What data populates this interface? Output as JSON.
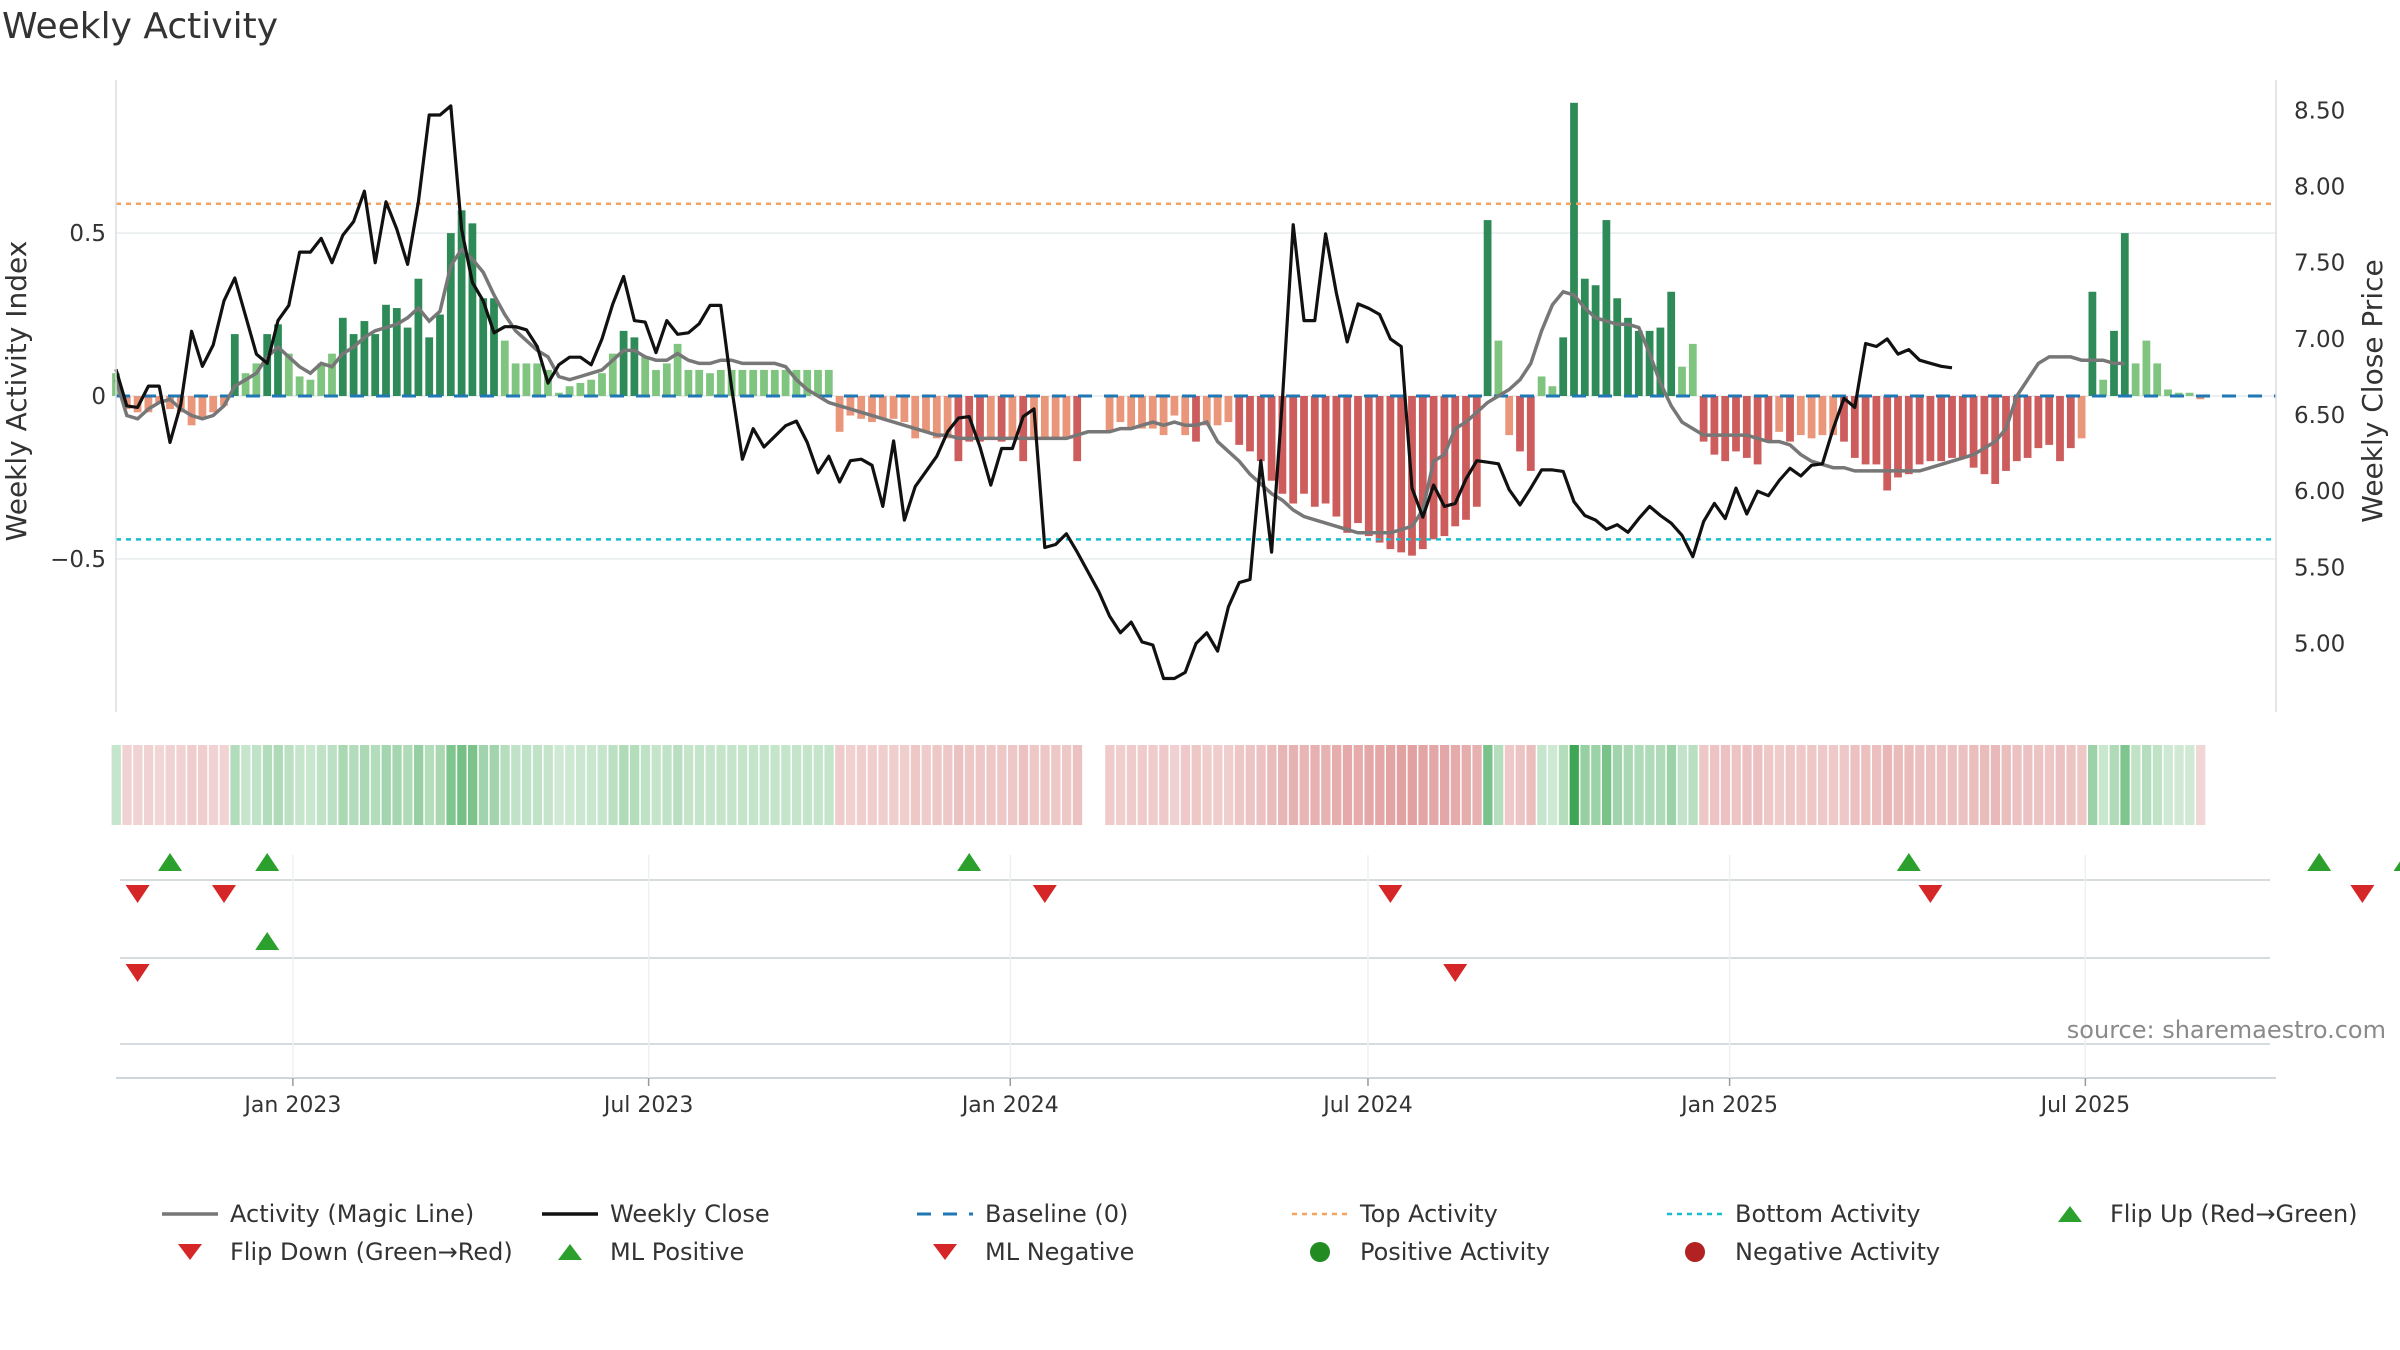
{
  "title": "Weekly Activity",
  "source": "source: sharemaestro.com",
  "colors": {
    "strong_pos": "#2e8b57",
    "light_pos": "#7fc47f",
    "strong_neg": "#cd5c5c",
    "light_neg": "#e9967a",
    "magic": "#777777",
    "close": "#111111",
    "baseline": "#1f77b4",
    "top": "#f4a460",
    "bottom": "#17becf",
    "flip_up": "#2ca02c",
    "flip_down": "#d62728",
    "pos_dot": "#228b22",
    "neg_dot": "#b22222"
  },
  "legend": [
    {
      "label": "Activity (Magic Line)",
      "sym": "line",
      "color": "#777777"
    },
    {
      "label": "Weekly Close",
      "sym": "line",
      "color": "#111111"
    },
    {
      "label": "Baseline (0)",
      "sym": "dash",
      "color": "#1f77b4"
    },
    {
      "label": "Top Activity",
      "sym": "dot",
      "color": "#f4a460"
    },
    {
      "label": "Bottom Activity",
      "sym": "dot",
      "color": "#17becf"
    },
    {
      "label": "Flip Up (Red→Green)",
      "sym": "up",
      "color": "#2ca02c"
    },
    {
      "label": "Flip Down (Green→Red)",
      "sym": "down",
      "color": "#d62728"
    },
    {
      "label": "ML Positive",
      "sym": "up",
      "color": "#2ca02c"
    },
    {
      "label": "ML Negative",
      "sym": "down",
      "color": "#d62728"
    },
    {
      "label": "Positive Activity",
      "sym": "circle",
      "color": "#228b22"
    },
    {
      "label": "Negative Activity",
      "sym": "circle",
      "color": "#b22222"
    }
  ],
  "chart_data": {
    "type": "bar",
    "title": "Weekly Activity",
    "ylabel": "Weekly Activity Index",
    "y2label": "Weekly Close Price",
    "ylim": [
      -0.97,
      0.97
    ],
    "y2lim": [
      4.55,
      8.7
    ],
    "yticks": [
      -0.5,
      0,
      0.5
    ],
    "ytick_labels": [
      "−0.5",
      "0",
      "0.5"
    ],
    "y2ticks": [
      5.0,
      5.5,
      6.0,
      6.5,
      7.0,
      7.5,
      8.0,
      8.5
    ],
    "y2tick_labels": [
      "5.00",
      "5.50",
      "6.00",
      "6.50",
      "7.00",
      "7.50",
      "8.00",
      "8.50"
    ],
    "top_activity": 0.59,
    "bottom_activity": -0.44,
    "x_start": "2022-10-03",
    "x_end": "2025-10-06",
    "x_ticks": [
      "2023-01-01",
      "2023-07-01",
      "2024-01-01",
      "2024-07-01",
      "2025-01-01",
      "2025-07-01"
    ],
    "x_tick_labels": [
      "Jan 2023",
      "Jul 2023",
      "Jan 2024",
      "Jul 2024",
      "Jan 2025",
      "Jul 2025"
    ],
    "activity_segments": [
      [
        0,
        [
          0.07,
          -0.04,
          -0.05,
          -0.05,
          -0.02,
          -0.04,
          -0.05,
          -0.09,
          -0.07,
          -0.05,
          -0.03,
          0.19,
          0.07,
          0.1,
          0.19,
          0.22,
          0.13,
          0.06,
          0.05,
          0.1,
          0.13,
          0.24,
          0.19,
          0.23,
          0.19,
          0.28,
          0.27,
          0.21,
          0.36,
          0.18,
          0.25,
          0.5,
          0.57,
          0.53,
          0.3,
          0.3,
          0.17,
          0.1,
          0.1,
          0.1,
          0.08,
          0.01,
          0.03,
          0.04,
          0.05,
          0.07,
          0.13,
          0.2,
          0.18,
          0.12,
          0.08,
          0.1,
          0.16,
          0.08,
          0.08,
          0.07,
          0.08,
          0.08,
          0.08,
          0.08,
          0.08,
          0.08,
          0.08,
          0.08,
          0.08,
          0.08,
          0.08,
          -0.11,
          -0.06,
          -0.07,
          -0.08,
          -0.07,
          -0.07,
          -0.08,
          -0.13,
          -0.11,
          -0.13,
          -0.13,
          -0.2,
          -0.14,
          -0.14,
          -0.13,
          -0.14,
          -0.13,
          -0.2,
          -0.13,
          -0.13,
          -0.13,
          -0.13,
          -0.2
        ]
      ],
      [
        92,
        [
          -0.11,
          -0.08,
          -0.1,
          -0.1,
          -0.1,
          -0.12,
          -0.06,
          -0.12,
          -0.14,
          -0.09,
          -0.09,
          -0.08,
          -0.15,
          -0.17,
          -0.2,
          -0.26,
          -0.3,
          -0.33,
          -0.3,
          -0.34,
          -0.33,
          -0.37,
          -0.42,
          -0.39,
          -0.43,
          -0.45,
          -0.47,
          -0.48,
          -0.49,
          -0.47,
          -0.44,
          -0.43,
          -0.4,
          -0.38,
          -0.34,
          0.54,
          0.17,
          -0.12,
          -0.17,
          -0.23,
          0.06,
          0.03,
          0.18,
          0.9,
          0.36,
          0.34,
          0.54,
          0.3,
          0.24,
          0.2,
          0.2,
          0.21,
          0.32,
          0.09,
          0.16,
          -0.14,
          -0.18,
          -0.2,
          -0.17,
          -0.19,
          -0.21,
          -0.14,
          -0.11,
          -0.14,
          -0.12,
          -0.13,
          -0.12,
          -0.12,
          -0.14,
          -0.19,
          -0.21,
          -0.21,
          -0.29,
          -0.25,
          -0.24,
          -0.21,
          -0.2,
          -0.2,
          -0.19,
          -0.19,
          -0.22,
          -0.24,
          -0.27,
          -0.23,
          -0.2,
          -0.19,
          -0.16,
          -0.15,
          -0.2,
          -0.16,
          -0.13,
          0.32,
          0.05,
          0.2,
          0.5,
          0.1,
          0.17,
          0.1,
          0.02,
          0.01,
          0.01,
          -0.01
        ]
      ]
    ],
    "magic_line": [
      0.05,
      -0.06,
      -0.07,
      -0.04,
      -0.02,
      -0.01,
      -0.04,
      -0.06,
      -0.07,
      -0.06,
      -0.03,
      0.03,
      0.05,
      0.07,
      0.12,
      0.15,
      0.12,
      0.09,
      0.07,
      0.1,
      0.09,
      0.13,
      0.15,
      0.18,
      0.2,
      0.21,
      0.22,
      0.24,
      0.27,
      0.23,
      0.26,
      0.4,
      0.45,
      0.42,
      0.38,
      0.31,
      0.25,
      0.2,
      0.17,
      0.14,
      0.12,
      0.06,
      0.05,
      0.06,
      0.07,
      0.08,
      0.11,
      0.14,
      0.14,
      0.12,
      0.11,
      0.11,
      0.13,
      0.11,
      0.1,
      0.1,
      0.11,
      0.11,
      0.1,
      0.1,
      0.1,
      0.1,
      0.09,
      0.05,
      0.02,
      0.0,
      -0.02,
      -0.03,
      -0.04,
      -0.05,
      -0.06,
      -0.07,
      -0.08,
      -0.09,
      -0.1,
      -0.11,
      -0.12,
      -0.12,
      -0.13,
      -0.13,
      -0.13,
      -0.13,
      -0.13,
      -0.13,
      -0.13,
      -0.13,
      -0.13,
      -0.13,
      -0.13,
      -0.12,
      -0.11,
      -0.11,
      -0.11,
      -0.1,
      -0.1,
      -0.09,
      -0.08,
      -0.09,
      -0.08,
      -0.09,
      -0.09,
      -0.08,
      -0.14,
      -0.17,
      -0.2,
      -0.24,
      -0.27,
      -0.3,
      -0.32,
      -0.35,
      -0.37,
      -0.38,
      -0.39,
      -0.4,
      -0.41,
      -0.42,
      -0.42,
      -0.42,
      -0.42,
      -0.41,
      -0.4,
      -0.35,
      -0.2,
      -0.18,
      -0.1,
      -0.08,
      -0.05,
      -0.02,
      0.0,
      0.02,
      0.05,
      0.1,
      0.2,
      0.28,
      0.32,
      0.31,
      0.27,
      0.24,
      0.23,
      0.22,
      0.22,
      0.21,
      0.13,
      0.04,
      -0.03,
      -0.08,
      -0.1,
      -0.12,
      -0.12,
      -0.12,
      -0.12,
      -0.12,
      -0.13,
      -0.14,
      -0.14,
      -0.15,
      -0.18,
      -0.2,
      -0.21,
      -0.22,
      -0.22,
      -0.23,
      -0.23,
      -0.23,
      -0.23,
      -0.23,
      -0.23,
      -0.23,
      -0.22,
      -0.21,
      -0.2,
      -0.19,
      -0.18,
      -0.16,
      -0.14,
      -0.1,
      0.0,
      0.05,
      0.1,
      0.12,
      0.12,
      0.12,
      0.11,
      0.11,
      0.11,
      0.1,
      0.1
    ],
    "weekly_close": [
      6.8,
      6.56,
      6.55,
      6.69,
      6.69,
      6.32,
      6.57,
      7.05,
      6.82,
      6.96,
      7.25,
      7.4,
      7.15,
      6.9,
      6.84,
      7.12,
      7.22,
      7.57,
      7.57,
      7.66,
      7.5,
      7.68,
      7.77,
      7.97,
      7.5,
      7.9,
      7.72,
      7.49,
      7.9,
      8.47,
      8.47,
      8.53,
      7.72,
      7.37,
      7.25,
      7.04,
      7.08,
      7.08,
      7.06,
      6.95,
      6.71,
      6.83,
      6.88,
      6.88,
      6.83,
      7.0,
      7.23,
      7.41,
      7.12,
      7.11,
      6.91,
      7.12,
      7.03,
      7.04,
      7.1,
      7.22,
      7.22,
      6.68,
      6.21,
      6.41,
      6.29,
      6.36,
      6.43,
      6.46,
      6.32,
      6.12,
      6.23,
      6.06,
      6.2,
      6.21,
      6.17,
      5.9,
      6.33,
      5.81,
      6.03,
      6.13,
      6.23,
      6.39,
      6.48,
      6.49,
      6.29,
      6.04,
      6.28,
      6.28,
      6.49,
      6.54,
      5.63,
      5.65,
      5.72,
      5.6,
      5.47,
      5.34,
      5.18,
      5.07,
      5.14,
      5.01,
      4.99,
      4.77,
      4.77,
      4.81,
      5.0,
      5.07,
      4.95,
      5.24,
      5.4,
      5.42,
      6.2,
      5.6,
      6.6,
      7.75,
      7.12,
      7.12,
      7.69,
      7.3,
      6.98,
      7.23,
      7.2,
      7.16,
      7.0,
      6.95,
      6.02,
      5.83,
      6.04,
      5.9,
      5.92,
      6.08,
      6.2,
      6.19,
      6.18,
      6.01,
      5.91,
      6.02,
      6.14,
      6.14,
      6.13,
      5.93,
      5.84,
      5.81,
      5.75,
      5.78,
      5.73,
      5.82,
      5.9,
      5.84,
      5.79,
      5.71,
      5.57,
      5.8,
      5.92,
      5.82,
      6.02,
      5.85,
      6.0,
      5.97,
      6.07,
      6.15,
      6.1,
      6.17,
      6.18,
      6.41,
      6.61,
      6.55,
      6.97,
      6.95,
      7.0,
      6.9,
      6.93,
      6.86,
      6.84,
      6.82,
      6.81
    ],
    "flip_up": [
      5,
      14,
      79,
      166,
      204,
      212,
      393
    ],
    "flip_down": [
      2,
      10,
      86,
      118,
      168,
      208,
      240
    ],
    "ml_positive": [
      14,
      225,
      395
    ],
    "ml_negative": [
      2,
      124,
      246
    ]
  }
}
